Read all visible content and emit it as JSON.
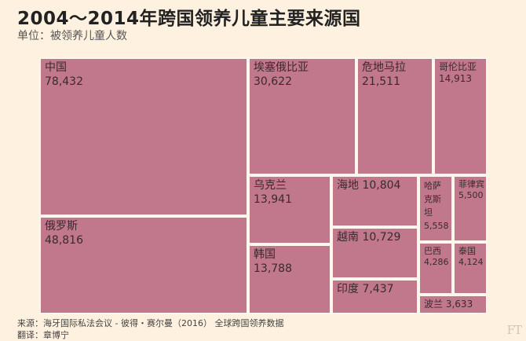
{
  "header": {
    "title": "2004～2014年跨国领养儿童主要来源国",
    "subtitle": "单位：被领养儿童人数"
  },
  "footer": {
    "source": "来源：海牙国际私法会议 - 彼得・赛尔曼（2016） 全球跨国领养数据",
    "translator": "翻译：章博宁",
    "logo": "FT"
  },
  "chart_data": {
    "type": "treemap",
    "title": "2004～2014年跨国领养儿童主要来源国",
    "unit": "单位：被领养儿童人数",
    "color": "#c1788c",
    "items": [
      {
        "name": "中国",
        "value": 78432,
        "label": "78,432"
      },
      {
        "name": "俄罗斯",
        "value": 48816,
        "label": "48,816"
      },
      {
        "name": "埃塞俄比亚",
        "value": 30622,
        "label": "30,622"
      },
      {
        "name": "危地马拉",
        "value": 21511,
        "label": "21,511"
      },
      {
        "name": "哥伦比亚",
        "value": 14913,
        "label": "14,913"
      },
      {
        "name": "乌克兰",
        "value": 13941,
        "label": "13,941"
      },
      {
        "name": "韩国",
        "value": 13788,
        "label": "13,788"
      },
      {
        "name": "海地",
        "value": 10804,
        "label": "10,804"
      },
      {
        "name": "越南",
        "value": 10729,
        "label": "10,729"
      },
      {
        "name": "印度",
        "value": 7437,
        "label": "7,437"
      },
      {
        "name": "哈萨克斯坦",
        "value": 5558,
        "label": "5,558"
      },
      {
        "name": "菲律宾",
        "value": 5500,
        "label": "5,500"
      },
      {
        "name": "巴西",
        "value": 4286,
        "label": "4,286"
      },
      {
        "name": "泰国",
        "value": 4124,
        "label": "4,124"
      },
      {
        "name": "波兰",
        "value": 3633,
        "label": "3,633"
      }
    ]
  }
}
